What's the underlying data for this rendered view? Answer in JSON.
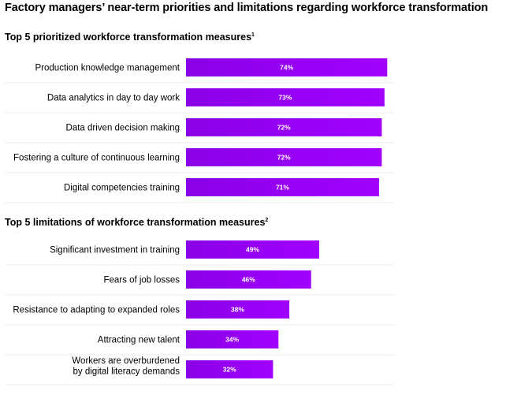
{
  "main_title": "Factory managers’ near-term priorities and limitations regarding workforce transformation",
  "colors": {
    "bar_gradient_start": "#8a00e6",
    "bar_gradient_end": "#a100ff",
    "bar_label": "#ffffff",
    "separator": "#d9d9d9"
  },
  "chart_data": [
    {
      "type": "bar",
      "orientation": "horizontal",
      "title": "Top 5 prioritized workforce transformation measures",
      "footnote_marker": "1",
      "categories": [
        "Production knowledge management",
        "Data analytics in day to day work",
        "Data driven decision making",
        "Fostering a culture of continuous learning",
        "Digital competencies training"
      ],
      "values": [
        74,
        73,
        72,
        72,
        71
      ],
      "value_labels": [
        "74%",
        "73%",
        "72%",
        "72%",
        "71%"
      ],
      "unit": "%",
      "xlim": [
        0,
        100
      ],
      "grid": false
    },
    {
      "type": "bar",
      "orientation": "horizontal",
      "title": "Top 5 limitations of workforce transformation measures",
      "footnote_marker": "2",
      "categories": [
        "Significant investment in training",
        "Fears of job losses",
        "Resistance to adapting to expanded roles",
        "Attracting new talent",
        [
          "Workers are overburdened",
          "by digital literacy demands"
        ]
      ],
      "values": [
        49,
        46,
        38,
        34,
        32
      ],
      "value_labels": [
        "49%",
        "46%",
        "38%",
        "34%",
        "32%"
      ],
      "unit": "%",
      "xlim": [
        0,
        100
      ],
      "grid": false
    }
  ]
}
